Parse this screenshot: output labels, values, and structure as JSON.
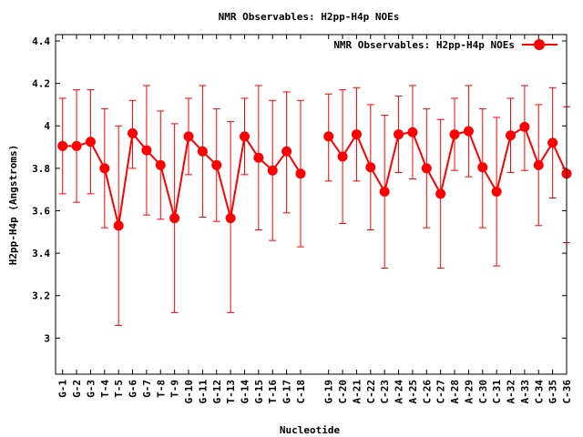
{
  "chart_data": {
    "type": "line",
    "title": "NMR Observables: H2pp-H4p NOEs",
    "xlabel": "Nucleotide",
    "ylabel": "H2pp-H4p (Angstroms)",
    "legend": {
      "label": "NMR Observables: H2pp-H4p NOEs",
      "position": "top-right"
    },
    "ylim": [
      2.83,
      4.43
    ],
    "yticks": [
      3,
      3.2,
      3.4,
      3.6,
      3.8,
      4,
      4.2,
      4.4
    ],
    "ytick_labels": [
      "3",
      "3.2",
      "3.4",
      "3.6",
      "3.8",
      "4",
      "4.2",
      "4.4"
    ],
    "xlim": [
      0.5,
      37
    ],
    "line_color": "#ff0000",
    "segments": [
      [
        {
          "label": "G-1",
          "x": 1,
          "y": 3.905,
          "lo": 3.68,
          "hi": 4.13
        },
        {
          "label": "G-2",
          "x": 2,
          "y": 3.905,
          "lo": 3.64,
          "hi": 4.17
        },
        {
          "label": "G-3",
          "x": 3,
          "y": 3.925,
          "lo": 3.68,
          "hi": 4.17
        },
        {
          "label": "T-4",
          "x": 4,
          "y": 3.8,
          "lo": 3.52,
          "hi": 4.08
        },
        {
          "label": "T-5",
          "x": 5,
          "y": 3.53,
          "lo": 3.06,
          "hi": 4.0
        },
        {
          "label": "G-6",
          "x": 6,
          "y": 3.965,
          "lo": 3.8,
          "hi": 4.12
        },
        {
          "label": "G-7",
          "x": 7,
          "y": 3.885,
          "lo": 3.58,
          "hi": 4.19
        },
        {
          "label": "T-8",
          "x": 8,
          "y": 3.815,
          "lo": 3.56,
          "hi": 4.07
        },
        {
          "label": "T-9",
          "x": 9,
          "y": 3.565,
          "lo": 3.12,
          "hi": 4.01
        },
        {
          "label": "G-10",
          "x": 10,
          "y": 3.95,
          "lo": 3.77,
          "hi": 4.13
        },
        {
          "label": "G-11",
          "x": 11,
          "y": 3.88,
          "lo": 3.57,
          "hi": 4.19
        },
        {
          "label": "G-12",
          "x": 12,
          "y": 3.815,
          "lo": 3.55,
          "hi": 4.08
        },
        {
          "label": "T-13",
          "x": 13,
          "y": 3.565,
          "lo": 3.12,
          "hi": 4.02
        },
        {
          "label": "G-14",
          "x": 14,
          "y": 3.95,
          "lo": 3.77,
          "hi": 4.13
        },
        {
          "label": "G-15",
          "x": 15,
          "y": 3.85,
          "lo": 3.51,
          "hi": 4.19
        },
        {
          "label": "T-16",
          "x": 16,
          "y": 3.79,
          "lo": 3.46,
          "hi": 4.12
        },
        {
          "label": "G-17",
          "x": 17,
          "y": 3.88,
          "lo": 3.59,
          "hi": 4.16
        },
        {
          "label": "C-18",
          "x": 18,
          "y": 3.775,
          "lo": 3.43,
          "hi": 4.12
        }
      ],
      [
        {
          "label": "G-19",
          "x": 20,
          "y": 3.95,
          "lo": 3.74,
          "hi": 4.15
        },
        {
          "label": "C-20",
          "x": 21,
          "y": 3.855,
          "lo": 3.54,
          "hi": 4.17
        },
        {
          "label": "A-21",
          "x": 22,
          "y": 3.96,
          "lo": 3.74,
          "hi": 4.18
        },
        {
          "label": "C-22",
          "x": 23,
          "y": 3.805,
          "lo": 3.51,
          "hi": 4.1
        },
        {
          "label": "C-23",
          "x": 24,
          "y": 3.69,
          "lo": 3.33,
          "hi": 4.05
        },
        {
          "label": "A-24",
          "x": 25,
          "y": 3.96,
          "lo": 3.78,
          "hi": 4.14
        },
        {
          "label": "A-25",
          "x": 26,
          "y": 3.97,
          "lo": 3.75,
          "hi": 4.19
        },
        {
          "label": "C-26",
          "x": 27,
          "y": 3.8,
          "lo": 3.52,
          "hi": 4.08
        },
        {
          "label": "C-27",
          "x": 28,
          "y": 3.68,
          "lo": 3.33,
          "hi": 4.03
        },
        {
          "label": "A-28",
          "x": 29,
          "y": 3.96,
          "lo": 3.79,
          "hi": 4.13
        },
        {
          "label": "A-29",
          "x": 30,
          "y": 3.975,
          "lo": 3.76,
          "hi": 4.19
        },
        {
          "label": "C-30",
          "x": 31,
          "y": 3.805,
          "lo": 3.52,
          "hi": 4.08
        },
        {
          "label": "C-31",
          "x": 32,
          "y": 3.69,
          "lo": 3.34,
          "hi": 4.04
        },
        {
          "label": "A-32",
          "x": 33,
          "y": 3.955,
          "lo": 3.78,
          "hi": 4.13
        },
        {
          "label": "A-33",
          "x": 34,
          "y": 3.995,
          "lo": 3.79,
          "hi": 4.19
        },
        {
          "label": "C-34",
          "x": 35,
          "y": 3.815,
          "lo": 3.53,
          "hi": 4.1
        },
        {
          "label": "G-35",
          "x": 36,
          "y": 3.92,
          "lo": 3.66,
          "hi": 4.18
        },
        {
          "label": "C-36",
          "x": 37,
          "y": 3.775,
          "lo": 3.45,
          "hi": 4.09
        }
      ]
    ]
  }
}
